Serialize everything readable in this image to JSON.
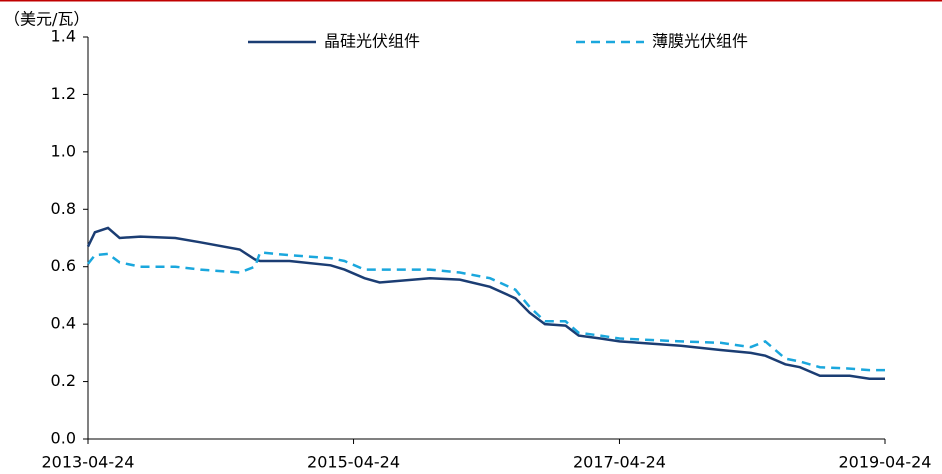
{
  "chart_data": {
    "type": "line",
    "ylabel": "（美元/瓦）",
    "x": [
      "2013-04-24",
      "2013-05-13",
      "2013-06-18",
      "2013-07-20",
      "2013-09-15",
      "2013-12-20",
      "2014-02-27",
      "2014-06-15",
      "2014-07-27",
      "2014-08-10",
      "2014-10-30",
      "2015-02-20",
      "2015-03-30",
      "2015-05-24",
      "2015-07-05",
      "2015-11-20",
      "2016-02-10",
      "2016-05-03",
      "2016-07-12",
      "2016-08-20",
      "2016-10-01",
      "2016-11-27",
      "2017-01-02",
      "2017-03-03",
      "2017-04-24",
      "2017-10-10",
      "2018-01-27",
      "2018-04-20",
      "2018-05-30",
      "2018-07-24",
      "2018-09-02",
      "2018-10-27",
      "2019-01-17",
      "2019-03-12",
      "2019-04-24"
    ],
    "series": [
      {
        "name": "晶硅光伏组件",
        "color": "#1b3d73",
        "dash": false,
        "values": [
          0.67,
          0.72,
          0.735,
          0.7,
          0.705,
          0.7,
          0.685,
          0.66,
          0.625,
          0.62,
          0.62,
          0.605,
          0.59,
          0.56,
          0.545,
          0.56,
          0.555,
          0.53,
          0.49,
          0.44,
          0.4,
          0.395,
          0.36,
          0.35,
          0.34,
          0.325,
          0.31,
          0.3,
          0.29,
          0.26,
          0.25,
          0.22,
          0.22,
          0.21,
          0.21
        ]
      },
      {
        "name": "薄膜光伏组件",
        "color": "#1aa7dd",
        "dash": true,
        "values": [
          0.61,
          0.64,
          0.645,
          0.615,
          0.6,
          0.6,
          0.59,
          0.58,
          0.6,
          0.65,
          0.64,
          0.63,
          0.62,
          0.59,
          0.59,
          0.59,
          0.58,
          0.56,
          0.52,
          0.46,
          0.41,
          0.41,
          0.37,
          0.36,
          0.35,
          0.34,
          0.335,
          0.32,
          0.34,
          0.28,
          0.27,
          0.25,
          0.245,
          0.24,
          0.24
        ]
      }
    ],
    "xlim": [
      "2013-04-24",
      "2019-04-24"
    ],
    "xticks": [
      "2013-04-24",
      "2015-04-24",
      "2017-04-24",
      "2019-04-24"
    ],
    "ylim": [
      0,
      1.4
    ],
    "yticks": [
      {
        "value": 0,
        "label": "0.0"
      },
      0.2,
      0.4,
      0.6,
      0.8,
      {
        "value": 1,
        "label": "1.0"
      },
      1.2,
      1.4
    ],
    "grid": false
  }
}
